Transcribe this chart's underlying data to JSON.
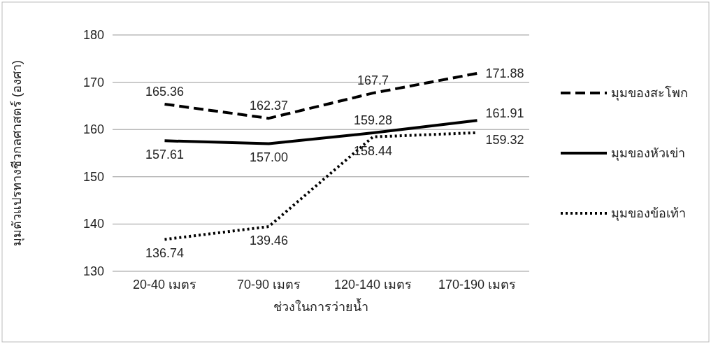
{
  "chart_data": {
    "type": "line",
    "xlabel": "ช่วงในการว่ายน้ำ",
    "ylabel": "มุมตัวแปรทางชีวกลศาสตร์ (องศา)",
    "categories": [
      "20-40 เมตร",
      "70-90 เมตร",
      "120-140 เมตร",
      "170-190 เมตร"
    ],
    "ylim": [
      130,
      180
    ],
    "yticks": [
      130,
      140,
      150,
      160,
      170,
      180
    ],
    "grid": "y",
    "legend": "right",
    "marker": "none",
    "series": [
      {
        "name": "มุมของสะโพก",
        "color": "#000000",
        "line_style": "dashed",
        "values": [
          165.36,
          162.37,
          167.7,
          171.88
        ],
        "value_labels": [
          "165.36",
          "162.37",
          "167.7",
          "171.88"
        ]
      },
      {
        "name": "มุมของหัวเข่า",
        "color": "#000000",
        "line_style": "solid",
        "values": [
          157.61,
          157.0,
          159.28,
          161.91
        ],
        "value_labels": [
          "157.61",
          "157.00",
          "159.28",
          "161.91"
        ]
      },
      {
        "name": "มุมของข้อเท้า",
        "color": "#000000",
        "line_style": "dotted",
        "values": [
          136.74,
          139.46,
          158.44,
          159.32
        ],
        "value_labels": [
          "136.74",
          "139.46",
          "158.44",
          "159.32"
        ]
      }
    ]
  }
}
